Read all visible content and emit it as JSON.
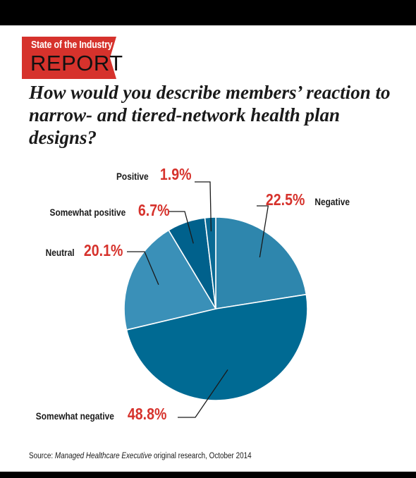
{
  "badge": {
    "line1": "State of the Industry",
    "line2": "REPORT",
    "color": "#d6322c"
  },
  "question": "How would you describe members’ reaction to narrow- and tiered-network health plan designs?",
  "chart_data": {
    "type": "pie",
    "title": "How would you describe members’ reaction to narrow- and tiered-network health plan designs?",
    "start": "12 o'clock, clockwise",
    "slices": [
      {
        "name": "Negative",
        "value": 22.5,
        "label": "22.5%",
        "color": "#2e86ad"
      },
      {
        "name": "Somewhat negative",
        "value": 48.8,
        "label": "48.8%",
        "color": "#006a93"
      },
      {
        "name": "Neutral",
        "value": 20.1,
        "label": "20.1%",
        "color": "#3a90b8"
      },
      {
        "name": "Somewhat positive",
        "value": 6.7,
        "label": "6.7%",
        "color": "#00618c"
      },
      {
        "name": "Positive",
        "value": 1.9,
        "label": "1.9%",
        "color": "#0a6a94"
      }
    ],
    "slice_border_color": "#ffffff",
    "leader_line_color": "#1a1a1a",
    "percent_color": "#d6322c"
  },
  "source": {
    "prefix": "Source: ",
    "publication": "Managed Healthcare Executive",
    "suffix": " original research, October 2014"
  }
}
